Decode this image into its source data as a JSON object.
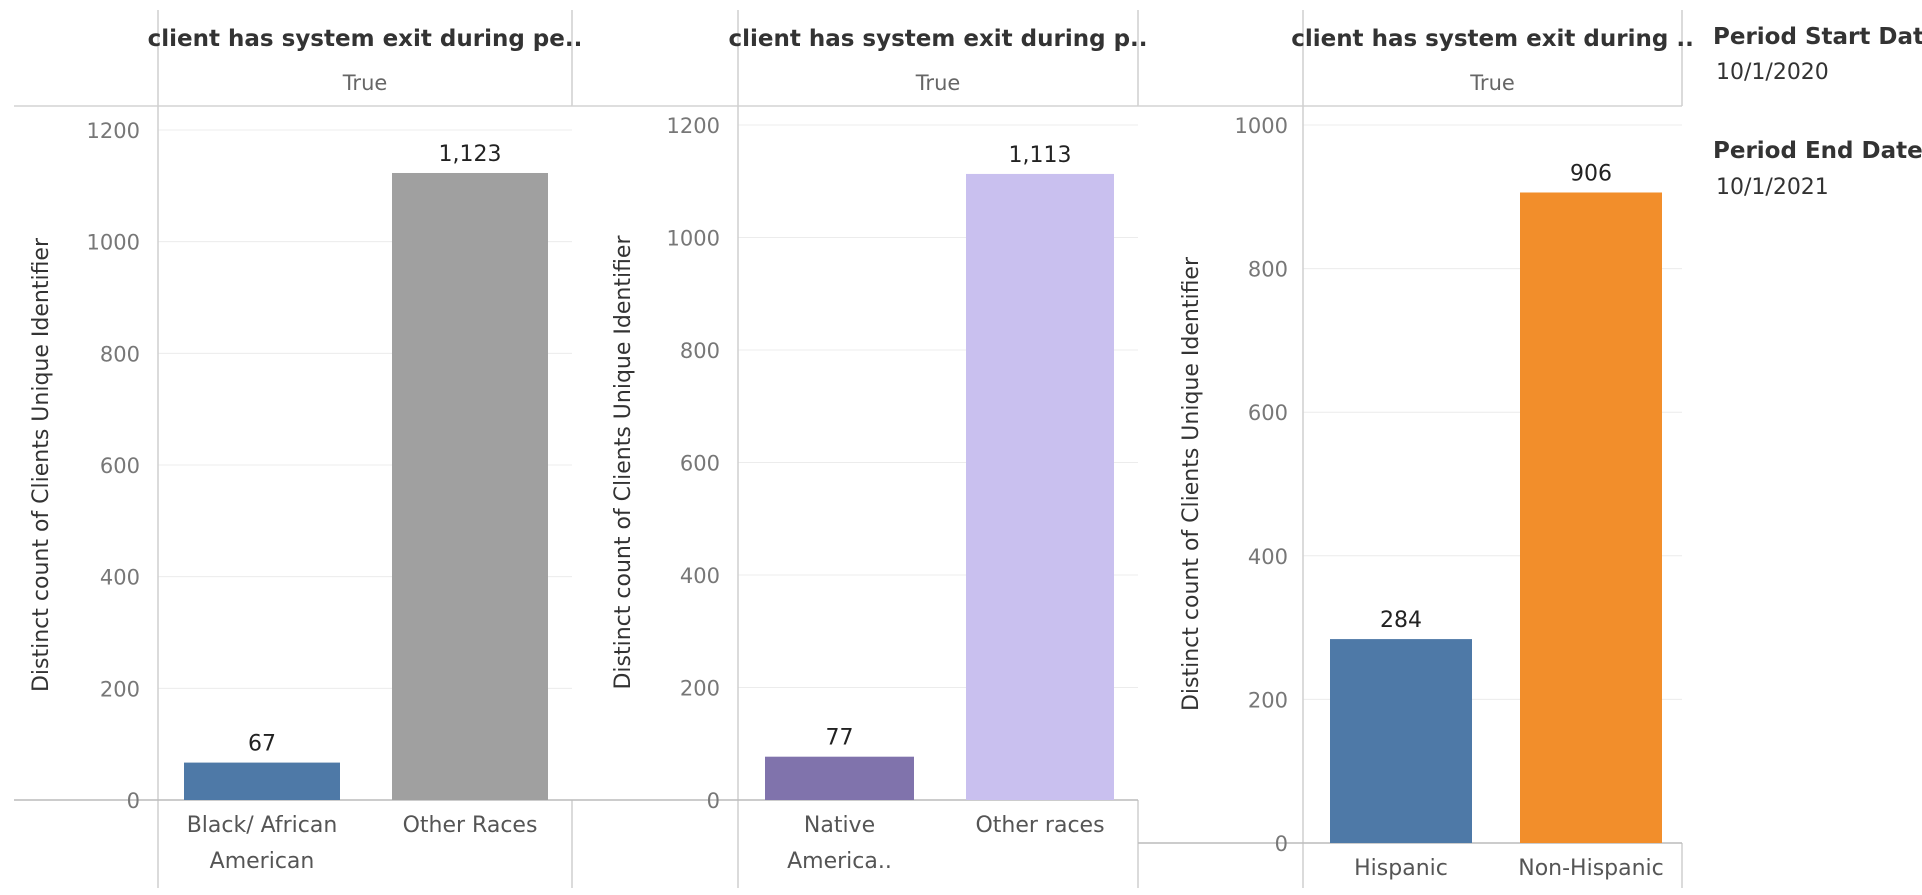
{
  "chart_data": [
    {
      "type": "bar",
      "column_header": "client has system exit during pe..",
      "column_value": "True",
      "ylabel": "Distinct count of Clients Unique Identifier",
      "ylim": [
        0,
        1200
      ],
      "yticks": [
        0,
        200,
        400,
        600,
        800,
        1000,
        1200
      ],
      "categories": [
        [
          "Black/ African",
          "American"
        ],
        [
          "Other Races"
        ]
      ],
      "values": [
        67,
        1123
      ],
      "value_labels": [
        "67",
        "1,123"
      ],
      "colors": [
        "#4e79a7",
        "#a0a0a0"
      ]
    },
    {
      "type": "bar",
      "column_header": "client has system exit during p..",
      "column_value": "True",
      "ylabel": "Distinct count of Clients Unique Identifier",
      "ylim": [
        0,
        1200
      ],
      "yticks": [
        0,
        200,
        400,
        600,
        800,
        1000,
        1200
      ],
      "categories": [
        [
          "Native",
          "America.."
        ],
        [
          "Other races"
        ]
      ],
      "values": [
        77,
        1113
      ],
      "value_labels": [
        "77",
        "1,113"
      ],
      "colors": [
        "#8073ac",
        "#c9c0ef"
      ]
    },
    {
      "type": "bar",
      "column_header": "client has system exit during ..",
      "column_value": "True",
      "ylabel": "Distinct count of Clients Unique Identifier",
      "ylim": [
        0,
        1000
      ],
      "yticks": [
        0,
        200,
        400,
        600,
        800,
        1000
      ],
      "categories": [
        [
          "Hispanic"
        ],
        [
          "Non-Hispanic"
        ]
      ],
      "values": [
        284,
        906
      ],
      "value_labels": [
        "284",
        "906"
      ],
      "colors": [
        "#4e79a7",
        "#f28e2b"
      ]
    }
  ],
  "filters": {
    "start_label": "Period Start Date",
    "start_value": "10/1/2020",
    "end_label": "Period End Date",
    "end_value": "10/1/2021"
  }
}
